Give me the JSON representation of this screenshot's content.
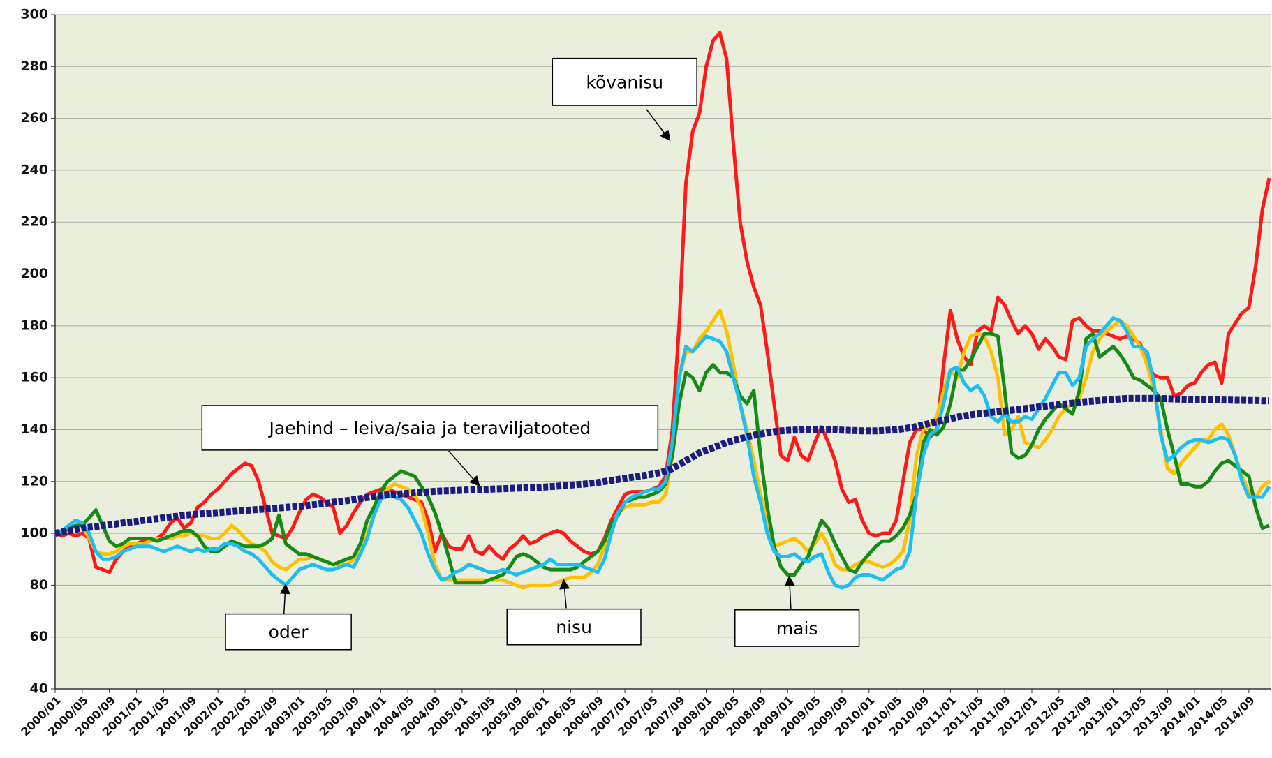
{
  "chart_data": {
    "type": "line",
    "categories": [
      "2000/01",
      null,
      null,
      null,
      "2000/05",
      null,
      null,
      null,
      "2000/09",
      null,
      null,
      null,
      "2001/01",
      null,
      null,
      null,
      "2001/05",
      null,
      null,
      null,
      "2001/09",
      null,
      null,
      null,
      "2002/01",
      null,
      null,
      null,
      "2002/05",
      null,
      null,
      null,
      "2002/09",
      null,
      null,
      null,
      "2003/01",
      null,
      null,
      null,
      "2003/05",
      null,
      null,
      null,
      "2003/09",
      null,
      null,
      null,
      "2004/01",
      null,
      null,
      null,
      "2004/05",
      null,
      null,
      null,
      "2004/09",
      null,
      null,
      null,
      "2005/01",
      null,
      null,
      null,
      "2005/05",
      null,
      null,
      null,
      "2005/09",
      null,
      null,
      null,
      "2006/01",
      null,
      null,
      null,
      "2006/05",
      null,
      null,
      null,
      "2006/09",
      null,
      null,
      null,
      "2007/01",
      null,
      null,
      null,
      "2007/05",
      null,
      null,
      null,
      "2007/09",
      null,
      null,
      null,
      "2008/01",
      null,
      null,
      null,
      "2008/05",
      null,
      null,
      null,
      "2008/09",
      null,
      null,
      null,
      "2009/01",
      null,
      null,
      null,
      "2009/05",
      null,
      null,
      null,
      "2009/09",
      null,
      null,
      null,
      "2010/01",
      null,
      null,
      null,
      "2010/05",
      null,
      null,
      null,
      "2010/09",
      null,
      null,
      null,
      "2011/01",
      null,
      null,
      null,
      "2011/05",
      null,
      null,
      null,
      "2011/09",
      null,
      null,
      null,
      "2012/01",
      null,
      null,
      null,
      "2012/05",
      null,
      null,
      null,
      "2012/09",
      null,
      null,
      null,
      "2013/01",
      null,
      null,
      null,
      "2013/05",
      null,
      null,
      null,
      "2013/09",
      null,
      null,
      null,
      "2014/01",
      null,
      null,
      null,
      "2014/05",
      null,
      null,
      null,
      "2014/09",
      null,
      null,
      null
    ],
    "series": [
      {
        "name": "kõvanisu",
        "color": "#ff1a1a",
        "values": [
          100,
          99,
          100,
          99,
          100,
          98,
          87,
          86,
          85,
          90,
          93,
          95,
          96,
          97,
          97,
          98,
          100,
          104,
          106,
          102,
          104,
          110,
          112,
          115,
          117,
          120,
          123,
          125,
          127,
          126,
          120,
          110,
          100,
          99,
          98,
          102,
          108,
          113,
          115,
          114,
          112,
          110,
          100,
          103,
          108,
          112,
          115,
          116,
          117,
          117,
          116,
          115,
          114,
          113,
          112,
          105,
          93,
          100,
          95,
          94,
          94,
          99,
          93,
          92,
          95,
          92,
          90,
          94,
          96,
          99,
          96,
          97,
          99,
          100,
          101,
          100,
          97,
          95,
          93,
          92,
          93,
          98,
          105,
          110,
          115,
          116,
          116,
          116,
          117,
          118,
          122,
          140,
          180,
          235,
          255,
          262,
          280,
          290,
          293,
          283,
          250,
          220,
          205,
          195,
          188,
          170,
          150,
          130,
          128,
          137,
          130,
          128,
          135,
          141,
          135,
          128,
          117,
          112,
          113,
          105,
          100,
          99,
          100,
          100,
          105,
          120,
          135,
          140,
          140,
          137,
          140,
          165,
          186,
          175,
          168,
          165,
          178,
          180,
          178,
          191,
          188,
          182,
          177,
          180,
          177,
          171,
          175,
          172,
          168,
          167,
          182,
          183,
          180,
          178,
          178,
          177,
          176,
          175,
          176,
          175,
          173,
          165,
          161,
          160,
          160,
          153,
          154,
          157,
          158,
          162,
          165,
          166,
          158,
          177,
          181,
          185,
          187,
          203,
          225,
          237
        ]
      },
      {
        "name": "nisu",
        "color": "#ffc000",
        "values": [
          100,
          100,
          101,
          103,
          103,
          98,
          93,
          92,
          92,
          93,
          95,
          96,
          96,
          96,
          97,
          98,
          98,
          98,
          99,
          99,
          100,
          99,
          99,
          98,
          98,
          100,
          103,
          101,
          98,
          96,
          95,
          93,
          89,
          87,
          86,
          88,
          90,
          90,
          91,
          90,
          89,
          88,
          88,
          88,
          90,
          93,
          100,
          107,
          114,
          117,
          119,
          118,
          117,
          115,
          110,
          100,
          88,
          82,
          82,
          82,
          82,
          82,
          82,
          82,
          82,
          82,
          82,
          81,
          80,
          79,
          80,
          80,
          80,
          80,
          81,
          82,
          83,
          83,
          83,
          85,
          88,
          95,
          103,
          108,
          110,
          111,
          111,
          111,
          112,
          112,
          115,
          130,
          160,
          170,
          170,
          175,
          178,
          182,
          186,
          178,
          165,
          150,
          140,
          128,
          115,
          105,
          95,
          96,
          97,
          98,
          96,
          93,
          96,
          100,
          95,
          88,
          86,
          86,
          88,
          89,
          89,
          88,
          87,
          88,
          90,
          93,
          105,
          130,
          140,
          142,
          145,
          155,
          163,
          160,
          170,
          176,
          177,
          176,
          170,
          160,
          138,
          140,
          145,
          135,
          134,
          133,
          136,
          140,
          145,
          148,
          150,
          152,
          160,
          170,
          175,
          178,
          180,
          182,
          180,
          176,
          172,
          165,
          155,
          140,
          125,
          123,
          127,
          130,
          133,
          136,
          136,
          140,
          142,
          138,
          130,
          122,
          116,
          114,
          118,
          120
        ]
      },
      {
        "name": "mais",
        "color": "#168a16",
        "values": [
          100,
          100,
          102,
          103,
          103,
          106,
          109,
          103,
          97,
          95,
          96,
          98,
          98,
          98,
          98,
          97,
          98,
          99,
          100,
          101,
          101,
          99,
          95,
          93,
          93,
          95,
          97,
          96,
          95,
          95,
          95,
          96,
          98,
          107,
          96,
          94,
          92,
          92,
          91,
          90,
          89,
          88,
          89,
          90,
          91,
          96,
          105,
          110,
          116,
          120,
          122,
          124,
          123,
          122,
          118,
          114,
          108,
          100,
          91,
          81,
          81,
          81,
          81,
          81,
          82,
          83,
          84,
          87,
          91,
          92,
          91,
          89,
          87,
          86,
          86,
          86,
          86,
          87,
          89,
          91,
          93,
          97,
          104,
          107,
          112,
          113,
          114,
          114,
          115,
          116,
          119,
          130,
          150,
          162,
          160,
          155,
          162,
          165,
          162,
          162,
          160,
          153,
          150,
          155,
          130,
          110,
          95,
          87,
          84,
          84,
          88,
          91,
          98,
          105,
          102,
          96,
          91,
          86,
          85,
          89,
          92,
          95,
          97,
          97,
          99,
          102,
          107,
          115,
          135,
          140,
          138,
          141,
          150,
          163,
          163,
          167,
          172,
          177,
          177,
          176,
          155,
          131,
          129,
          130,
          134,
          140,
          144,
          147,
          150,
          148,
          146,
          155,
          175,
          177,
          168,
          170,
          172,
          169,
          165,
          160,
          159,
          157,
          155,
          152,
          140,
          130,
          119,
          119,
          118,
          118,
          120,
          124,
          127,
          128,
          126,
          124,
          122,
          110,
          102,
          103
        ]
      },
      {
        "name": "oder",
        "color": "#1ebef0",
        "values": [
          100,
          101,
          103,
          105,
          104,
          100,
          93,
          90,
          90,
          91,
          93,
          94,
          95,
          95,
          95,
          94,
          93,
          94,
          95,
          94,
          93,
          94,
          93,
          94,
          94,
          96,
          96,
          95,
          93,
          92,
          90,
          87,
          84,
          82,
          80,
          83,
          86,
          87,
          88,
          87,
          86,
          86,
          87,
          88,
          87,
          92,
          98,
          107,
          113,
          115,
          114,
          113,
          110,
          105,
          100,
          92,
          86,
          82,
          83,
          85,
          86,
          88,
          87,
          86,
          85,
          85,
          86,
          85,
          84,
          85,
          86,
          87,
          88,
          90,
          88,
          88,
          88,
          88,
          87,
          86,
          85,
          90,
          100,
          108,
          112,
          114,
          115,
          116,
          117,
          117,
          120,
          135,
          160,
          172,
          170,
          173,
          176,
          175,
          174,
          170,
          160,
          150,
          138,
          122,
          112,
          100,
          93,
          91,
          91,
          92,
          90,
          89,
          91,
          92,
          85,
          80,
          79,
          80,
          83,
          84,
          84,
          83,
          82,
          84,
          86,
          87,
          93,
          115,
          130,
          138,
          140,
          150,
          163,
          164,
          158,
          155,
          157,
          153,
          145,
          143,
          146,
          143,
          143,
          145,
          144,
          148,
          152,
          157,
          162,
          162,
          157,
          160,
          172,
          175,
          177,
          180,
          183,
          182,
          178,
          172,
          172,
          170,
          158,
          138,
          128,
          130,
          133,
          135,
          136,
          136,
          135,
          136,
          137,
          136,
          130,
          120,
          114,
          114,
          114,
          118
        ]
      },
      {
        "name": "Jaehind – leiva/saia ja teraviljatooted",
        "color": "#1c1c80",
        "values": [
          100,
          100.5,
          101,
          101.5,
          102,
          102.3,
          102.6,
          103,
          103.3,
          103.6,
          104,
          104.3,
          104.6,
          105,
          105.3,
          105.6,
          106,
          106.3,
          106.6,
          107,
          107.2,
          107.4,
          107.6,
          107.8,
          108,
          108.2,
          108.4,
          108.6,
          108.8,
          109,
          109.2,
          109.4,
          109.6,
          109.8,
          110,
          110.2,
          110.4,
          110.7,
          111,
          111.3,
          111.6,
          112,
          112.3,
          112.6,
          113,
          113.4,
          113.8,
          114.2,
          114.5,
          114.8,
          115,
          115.2,
          115.4,
          115.6,
          115.8,
          116,
          116.2,
          116.3,
          116.4,
          116.5,
          116.6,
          116.7,
          116.8,
          116.9,
          117,
          117.1,
          117.2,
          117.3,
          117.4,
          117.5,
          117.6,
          117.7,
          117.8,
          118,
          118.2,
          118.4,
          118.6,
          118.8,
          119,
          119.3,
          119.6,
          120,
          120.4,
          120.8,
          121.2,
          121.6,
          122,
          122.4,
          122.8,
          123.3,
          124,
          125,
          126.5,
          128,
          129.5,
          131,
          132,
          133,
          134,
          135,
          135.8,
          136.5,
          137.2,
          137.8,
          138.3,
          138.8,
          139.2,
          139.5,
          139.7,
          139.8,
          139.9,
          140,
          140,
          140,
          140,
          139.9,
          139.8,
          139.7,
          139.6,
          139.5,
          139.5,
          139.5,
          139.6,
          139.8,
          140,
          140.3,
          140.7,
          141.2,
          141.8,
          142.4,
          143,
          143.6,
          144.2,
          144.8,
          145.3,
          145.7,
          146,
          146.3,
          146.6,
          146.9,
          147.2,
          147.5,
          147.8,
          148.1,
          148.4,
          148.7,
          149,
          149.3,
          149.6,
          149.9,
          150.2,
          150.5,
          150.8,
          151,
          151.2,
          151.4,
          151.6,
          151.8,
          152,
          152,
          152,
          152,
          152,
          152,
          151.9,
          151.8,
          151.7,
          151.6,
          151.5,
          151.5,
          151.5,
          151.5,
          151.4,
          151.4,
          151.3,
          151.3,
          151.2,
          151.2,
          151.1,
          151.1
        ]
      }
    ],
    "ylim": [
      40,
      300
    ],
    "yticks": [
      40,
      60,
      80,
      100,
      120,
      140,
      160,
      180,
      200,
      220,
      240,
      260,
      280,
      300
    ],
    "grid": true
  }
}
